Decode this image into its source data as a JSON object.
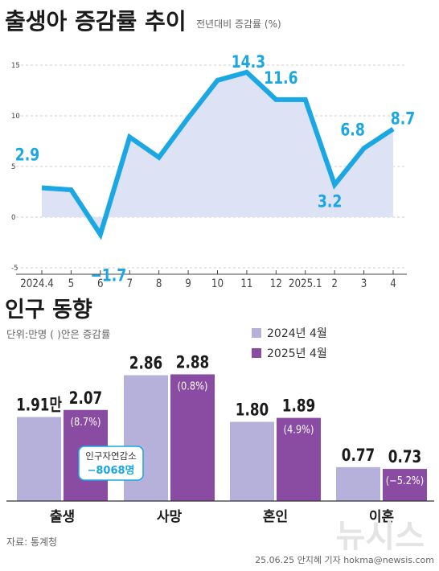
{
  "line_section": {
    "title": "출생아 증감률 추이",
    "subtitle": "전년대비 증감률 (%)"
  },
  "bar_section": {
    "title": "인구 동향",
    "unit_note": "단위:만명 ( )안은  증감률",
    "callout_label": "인구자연감소",
    "callout_value": "−8068명"
  },
  "footer": {
    "source": "자료: 통계청",
    "credit": "25.06.25 안지혜 기자 hokma@newsis.com",
    "watermark": "뉴시스"
  },
  "colors": {
    "line": "#1aa7e3",
    "area": "#dde3f4",
    "bar_2024": "#b6b1da",
    "bar_2025": "#8a4ba3"
  },
  "chart_data": [
    {
      "type": "line",
      "title": "출생아 증감률 추이",
      "x": [
        "2024.4",
        "5",
        "6",
        "7",
        "8",
        "9",
        "10",
        "11",
        "12",
        "2025.1",
        "2",
        "3",
        "4"
      ],
      "values": [
        2.9,
        2.7,
        -1.7,
        7.9,
        5.9,
        9.8,
        13.5,
        14.3,
        11.6,
        11.6,
        3.2,
        6.8,
        8.7
      ],
      "data_labels": [
        {
          "index": 0,
          "text": "2.9"
        },
        {
          "index": 2,
          "text": "−1.7"
        },
        {
          "index": 7,
          "text": "14.3"
        },
        {
          "index": 8,
          "text": "11.6"
        },
        {
          "index": 10,
          "text": "3.2"
        },
        {
          "index": 11,
          "text": "6.8"
        },
        {
          "index": 12,
          "text": "8.7"
        }
      ],
      "y_ticks": [
        -5,
        0,
        5,
        10,
        15
      ],
      "ylim": [
        -5,
        17
      ],
      "grid": true
    },
    {
      "type": "bar",
      "title": "인구 동향",
      "categories": [
        "출생",
        "사망",
        "혼인",
        "이혼"
      ],
      "series": [
        {
          "name": "2024년 4월",
          "values": [
            1.91,
            2.86,
            1.8,
            0.77
          ],
          "labels": [
            "1.91만",
            "2.86",
            "1.80",
            "0.77"
          ]
        },
        {
          "name": "2025년 4월",
          "values": [
            2.07,
            2.88,
            1.89,
            0.73
          ],
          "labels": [
            "2.07",
            "2.88",
            "1.89",
            "0.73"
          ],
          "change_labels": [
            "(8.7%)",
            "(0.8%)",
            "(4.9%)",
            "(−5.2%)"
          ]
        }
      ],
      "legend": "top-right",
      "ylim": [
        0,
        3.35
      ]
    }
  ]
}
